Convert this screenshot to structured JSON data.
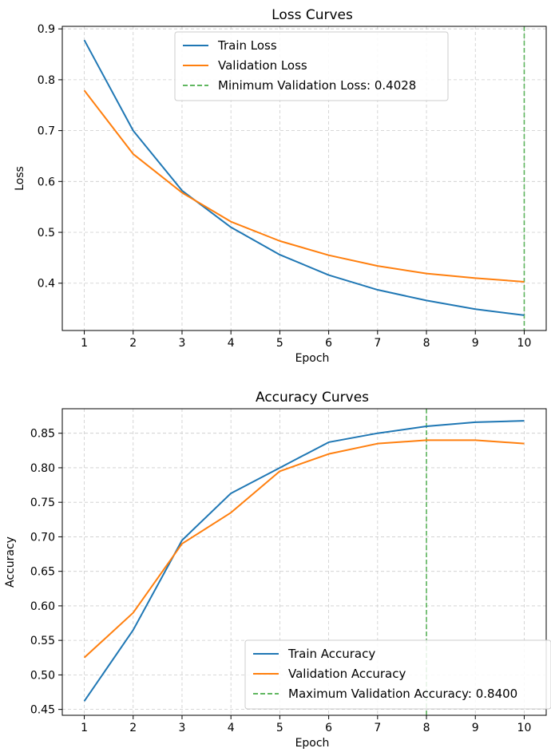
{
  "chart_data": [
    {
      "type": "line",
      "title": "Loss Curves",
      "xlabel": "Epoch",
      "ylabel": "Loss",
      "x": [
        1,
        2,
        3,
        4,
        5,
        6,
        7,
        8,
        9,
        10
      ],
      "xlim": [
        0.55,
        10.45
      ],
      "ylim": [
        0.307,
        0.905
      ],
      "xticks": [
        "1",
        "2",
        "3",
        "4",
        "5",
        "6",
        "7",
        "8",
        "9",
        "10"
      ],
      "yticks": [
        0.4,
        0.5,
        0.6,
        0.7,
        0.8,
        0.9
      ],
      "ytick_labels": [
        "0.4",
        "0.5",
        "0.6",
        "0.7",
        "0.8",
        "0.9"
      ],
      "grid": true,
      "legend_position": "upper-center",
      "series": [
        {
          "name": "Train Loss",
          "color": "#1f77b4",
          "style": "solid",
          "values": [
            0.878,
            0.7,
            0.582,
            0.51,
            0.456,
            0.416,
            0.387,
            0.366,
            0.349,
            0.337
          ]
        },
        {
          "name": "Validation Loss",
          "color": "#ff7f0e",
          "style": "solid",
          "values": [
            0.779,
            0.654,
            0.578,
            0.521,
            0.483,
            0.455,
            0.434,
            0.419,
            0.41,
            0.4028
          ]
        }
      ],
      "vline": {
        "name": "Minimum Validation Loss: 0.4028",
        "x": 10,
        "color": "#2ca02c",
        "style": "dashed"
      }
    },
    {
      "type": "line",
      "title": "Accuracy Curves",
      "xlabel": "Epoch",
      "ylabel": "Accuracy",
      "x": [
        1,
        2,
        3,
        4,
        5,
        6,
        7,
        8,
        9,
        10
      ],
      "xlim": [
        0.55,
        10.45
      ],
      "ylim": [
        0.4415,
        0.8855
      ],
      "xticks": [
        "1",
        "2",
        "3",
        "4",
        "5",
        "6",
        "7",
        "8",
        "9",
        "10"
      ],
      "yticks": [
        0.45,
        0.5,
        0.55,
        0.6,
        0.65,
        0.7,
        0.75,
        0.8,
        0.85
      ],
      "ytick_labels": [
        "0.45",
        "0.50",
        "0.55",
        "0.60",
        "0.65",
        "0.70",
        "0.75",
        "0.80",
        "0.85"
      ],
      "grid": true,
      "legend_position": "lower-right",
      "series": [
        {
          "name": "Train Accuracy",
          "color": "#1f77b4",
          "style": "solid",
          "values": [
            0.462,
            0.565,
            0.695,
            0.763,
            0.8,
            0.837,
            0.85,
            0.86,
            0.866,
            0.868
          ]
        },
        {
          "name": "Validation Accuracy",
          "color": "#ff7f0e",
          "style": "solid",
          "values": [
            0.525,
            0.59,
            0.69,
            0.735,
            0.795,
            0.82,
            0.835,
            0.84,
            0.84,
            0.835
          ]
        }
      ],
      "vline": {
        "name": "Maximum Validation Accuracy: 0.8400",
        "x": 8,
        "color": "#2ca02c",
        "style": "dashed"
      }
    }
  ]
}
